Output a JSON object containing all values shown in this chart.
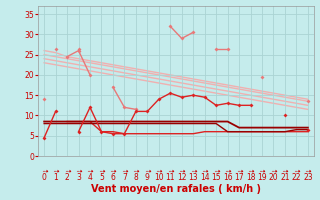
{
  "x": [
    0,
    1,
    2,
    3,
    4,
    5,
    6,
    7,
    8,
    9,
    10,
    11,
    12,
    13,
    14,
    15,
    16,
    17,
    18,
    19,
    20,
    21,
    22,
    23
  ],
  "line1": [
    null,
    26.5,
    null,
    26.5,
    null,
    null,
    null,
    null,
    null,
    null,
    null,
    32,
    29,
    30.5,
    null,
    26.5,
    26.5,
    null,
    null,
    19.5,
    null,
    null,
    null,
    13.5
  ],
  "line2": [
    14,
    null,
    24.5,
    26,
    20,
    null,
    17,
    12,
    11.5,
    null,
    null,
    null,
    null,
    null,
    null,
    null,
    null,
    null,
    null,
    null,
    null,
    null,
    null,
    null
  ],
  "line3_trend1": [
    26,
    25.5,
    24.5,
    24,
    23.5,
    23,
    22.5,
    22,
    21.5,
    21,
    20.5,
    20,
    19.5,
    19,
    18.5,
    18,
    17.5,
    17,
    16.5,
    16,
    15.5,
    15,
    14.5,
    14
  ],
  "line3_trend2": [
    25,
    24.5,
    24,
    23.5,
    23,
    22.5,
    22,
    21.5,
    21,
    20.5,
    20,
    19.5,
    19,
    18.5,
    18,
    17.5,
    17,
    16.5,
    16,
    15.5,
    15,
    14.5,
    14,
    13.5
  ],
  "line3_trend3": [
    24,
    23.5,
    23,
    22.5,
    22,
    21.5,
    21,
    20.5,
    20,
    19.5,
    19,
    18.5,
    18,
    17.5,
    17,
    16.5,
    16,
    15.5,
    15,
    14.5,
    14,
    13.5,
    13,
    12.5
  ],
  "line3_trend4": [
    23,
    22.5,
    22,
    21.5,
    21,
    20.5,
    20,
    19.5,
    19,
    18.5,
    18,
    17.5,
    17,
    16.5,
    16,
    15.5,
    15,
    14.5,
    14,
    13.5,
    13,
    12.5,
    12,
    11.5
  ],
  "line4": [
    4.5,
    11,
    null,
    6,
    12,
    6,
    5.5,
    5.5,
    11,
    11,
    14,
    15.5,
    14.5,
    15,
    14.5,
    12.5,
    13,
    12.5,
    12.5,
    null,
    null,
    10,
    null,
    6.5
  ],
  "line5": [
    null,
    null,
    8.5,
    8.5,
    8.5,
    6,
    6,
    5.5,
    5.5,
    5.5,
    5.5,
    5.5,
    5.5,
    5.5,
    6,
    6,
    6,
    6,
    6,
    6,
    6,
    6,
    6,
    6
  ],
  "line6_flat1": [
    8.5,
    8.5,
    8.5,
    8.5,
    8.5,
    8.5,
    8.5,
    8.5,
    8.5,
    8.5,
    8.5,
    8.5,
    8.5,
    8.5,
    8.5,
    8.5,
    8.5,
    7,
    7,
    7,
    7,
    7,
    7,
    7
  ],
  "line6_flat2": [
    8,
    8,
    8,
    8,
    8,
    8,
    8,
    8,
    8,
    8,
    8,
    8,
    8,
    8,
    8,
    8,
    6,
    6,
    6,
    6,
    6,
    6,
    6.5,
    6.5
  ],
  "xlabel": "Vent moyen/en rafales ( km/h )",
  "ylim": [
    0,
    37
  ],
  "yticks": [
    0,
    5,
    10,
    15,
    20,
    25,
    30,
    35
  ],
  "xlim": [
    -0.5,
    23.5
  ],
  "bg_color": "#c5ecec",
  "grid_color": "#aad4d4",
  "light_pink": "#f0b0b0",
  "pink": "#e87878",
  "red": "#dd2222",
  "dark_red": "#990000",
  "xlabel_color": "#cc0000",
  "tick_color": "#cc0000",
  "arrow_color": "#cc0000"
}
